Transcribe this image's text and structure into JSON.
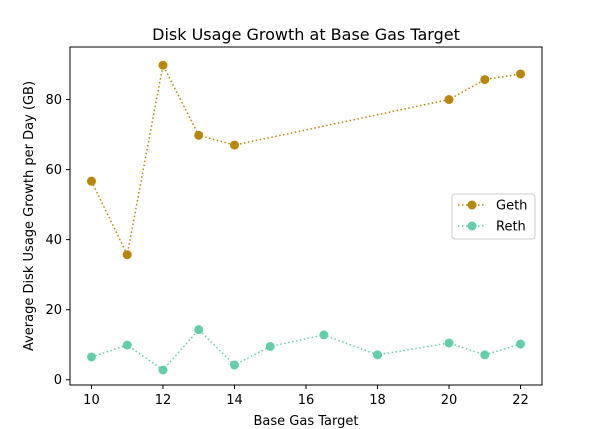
{
  "chart_data": {
    "type": "line",
    "title": "Disk Usage Growth at Base Gas Target",
    "xlabel": "Base Gas Target",
    "ylabel": "Average Disk Usage Growth per Day (GB)",
    "xlim": [
      9.4,
      22.6
    ],
    "ylim": [
      -1.5,
      95
    ],
    "xticks": [
      10,
      12,
      14,
      16,
      18,
      20,
      22
    ],
    "yticks": [
      0,
      20,
      40,
      60,
      80
    ],
    "grid": false,
    "legend": "center-right",
    "series": [
      {
        "name": "Geth",
        "color": "#b8860b",
        "marker": "circle",
        "linestyle": "dotted",
        "x": [
          10,
          11,
          12,
          13,
          14,
          20,
          21,
          22
        ],
        "y": [
          56.7,
          35.7,
          89.8,
          69.8,
          67.0,
          80.0,
          85.7,
          87.3
        ]
      },
      {
        "name": "Reth",
        "color": "#66cdaa",
        "marker": "circle",
        "linestyle": "dotted",
        "x": [
          10,
          11,
          12,
          13,
          14,
          15,
          16.5,
          18,
          20,
          21,
          22
        ],
        "y": [
          6.5,
          9.9,
          2.8,
          14.3,
          4.2,
          9.5,
          12.8,
          7.1,
          10.5,
          7.1,
          10.2
        ]
      }
    ]
  }
}
